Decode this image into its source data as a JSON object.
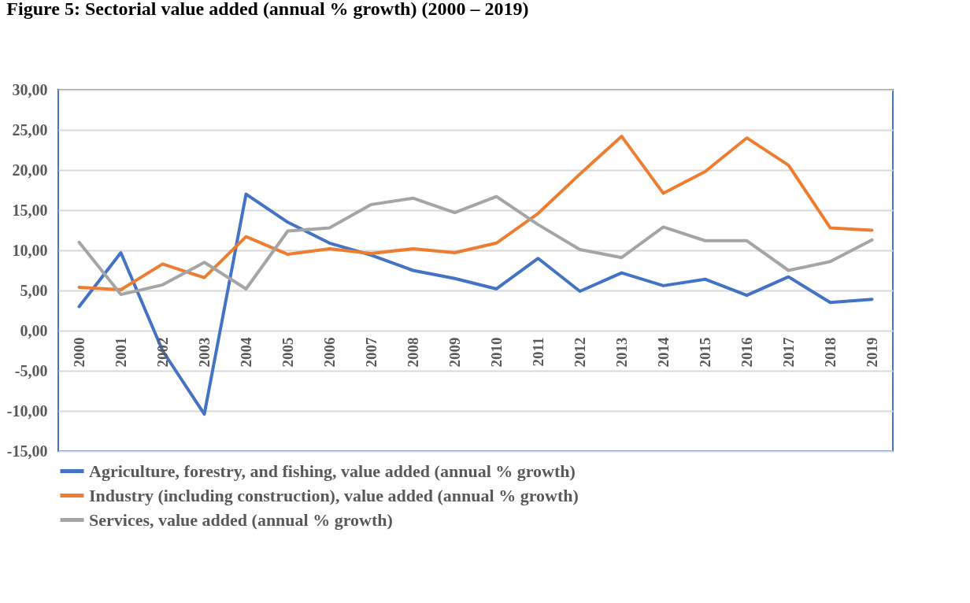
{
  "chart_data": {
    "type": "line",
    "title": "Figure 5: Sectorial value added (annual % growth) (2000 – 2019)",
    "categories": [
      "2000",
      "2001",
      "2002",
      "2003",
      "2004",
      "2005",
      "2006",
      "2007",
      "2008",
      "2009",
      "2010",
      "2011",
      "2012",
      "2013",
      "2014",
      "2015",
      "2016",
      "2017",
      "2018",
      "2019"
    ],
    "series": [
      {
        "name": "Agriculture, forestry, and fishing, value added (annual % growth)",
        "color": "#4472c4",
        "values": [
          3.0,
          9.7,
          -2.5,
          -10.4,
          17.0,
          13.5,
          10.9,
          9.4,
          7.5,
          6.5,
          5.2,
          9.0,
          4.9,
          7.2,
          5.6,
          6.4,
          4.4,
          6.7,
          3.5,
          3.9
        ]
      },
      {
        "name": "Industry (including construction), value added (annual % growth)",
        "color": "#ed7d31",
        "values": [
          5.4,
          5.1,
          8.3,
          6.6,
          11.7,
          9.5,
          10.2,
          9.6,
          10.2,
          9.7,
          10.9,
          14.6,
          19.5,
          24.2,
          17.1,
          19.8,
          24.0,
          20.6,
          12.8,
          12.5
        ]
      },
      {
        "name": "Services, value added (annual % growth)",
        "color": "#a5a5a5",
        "values": [
          11.0,
          4.5,
          5.7,
          8.5,
          5.2,
          12.4,
          12.8,
          15.7,
          16.5,
          14.7,
          16.7,
          13.2,
          10.1,
          9.1,
          12.9,
          11.2,
          11.2,
          7.5,
          8.6,
          11.3
        ]
      }
    ],
    "ylim": [
      -15,
      30
    ],
    "yticks": [
      {
        "value": -15,
        "label": "-15,00"
      },
      {
        "value": -10,
        "label": "-10,00"
      },
      {
        "value": -5,
        "label": "-5,00"
      },
      {
        "value": 0,
        "label": "0,00"
      },
      {
        "value": 5,
        "label": "5,00"
      },
      {
        "value": 10,
        "label": "10,00"
      },
      {
        "value": 15,
        "label": "15,00"
      },
      {
        "value": 20,
        "label": "20,00"
      },
      {
        "value": 25,
        "label": "25,00"
      },
      {
        "value": 30,
        "label": "30,00"
      }
    ],
    "grid": "y",
    "legend": "bottom",
    "marker": "none",
    "line_style": "solid"
  }
}
